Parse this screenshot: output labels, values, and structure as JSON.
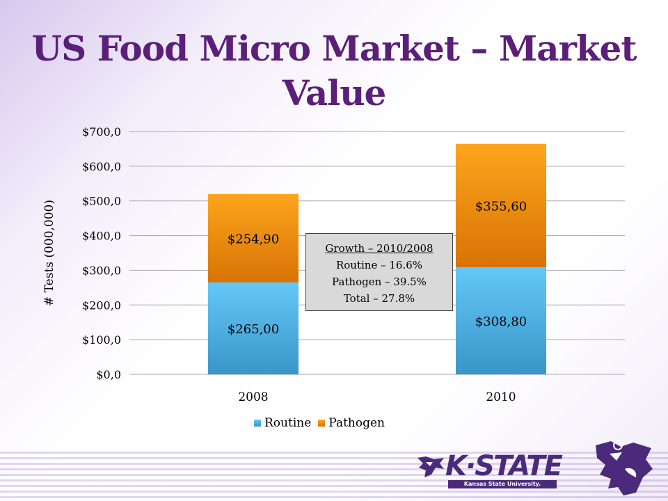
{
  "slide": {
    "title": "US Food Micro Market – Market Value"
  },
  "growth_box": {
    "title": "Growth – 2010/2008",
    "lines": [
      "Routine – 16.6%",
      "Pathogen – 39.5%",
      "Total – 27.8%"
    ]
  },
  "logo": {
    "wordmark": "K·STATE",
    "subtitle": "Kansas State University."
  },
  "colors": {
    "title": "#5b1f7a",
    "routine_top": "#63c8f8",
    "routine_bottom": "#3a95c8",
    "pathogen_top": "#fda51d",
    "pathogen_bottom": "#d87305"
  },
  "chart_data": {
    "type": "bar",
    "stacked": true,
    "categories": [
      "2008",
      "2010"
    ],
    "series": [
      {
        "name": "Routine",
        "values": [
          265.0,
          308.8
        ],
        "labels": [
          "$265,00",
          "$308,80"
        ]
      },
      {
        "name": "Pathogen",
        "values": [
          254.9,
          355.6
        ],
        "labels": [
          "$254,90",
          "$355,60"
        ]
      }
    ],
    "ylabel": "# Tests (000,000)",
    "ylim": [
      0,
      700
    ],
    "yticks": [
      0,
      100,
      200,
      300,
      400,
      500,
      600,
      700
    ],
    "ytick_labels": [
      "$0,0",
      "$100,0",
      "$200,0",
      "$300,0",
      "$400,0",
      "$500,0",
      "$600,0",
      "$700,0"
    ],
    "grid": true,
    "legend": "bottom"
  }
}
